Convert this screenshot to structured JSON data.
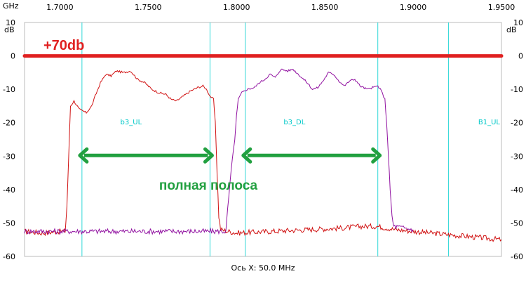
{
  "chart_data": {
    "type": "line",
    "x_unit": "GHz",
    "y_unit": "dB",
    "xlim": [
      1.68,
      1.95
    ],
    "ylim": [
      -60,
      10
    ],
    "x_ticks": [
      1.7,
      1.75,
      1.8,
      1.85,
      1.9,
      1.95
    ],
    "x_tick_labels": [
      "1.7000",
      "1.7500",
      "1.8000",
      "1.8500",
      "1.9000",
      "1.9500"
    ],
    "y_ticks": [
      10,
      0,
      -10,
      -20,
      -30,
      -40,
      -50,
      -60
    ],
    "y_tick_labels": [
      "10",
      "0",
      "-10",
      "-20",
      "-30",
      "-40",
      "-50",
      "-60"
    ],
    "xlabel": "Ось X: 50.0 MHz",
    "grid": "vertical markers only",
    "markers": [
      {
        "x": 1.7125,
        "label": "b3_UL"
      },
      {
        "x": 1.785,
        "label": ""
      },
      {
        "x": 1.805,
        "label": "b3_DL"
      },
      {
        "x": 1.88,
        "label": ""
      },
      {
        "x": 1.92,
        "label": "B1_UL"
      }
    ],
    "reference_line": {
      "y": 0,
      "label": "+70db",
      "color": "#e02020"
    },
    "bandwidth_arrows": [
      {
        "x1": 1.7125,
        "x2": 1.785,
        "y": -30
      },
      {
        "x1": 1.805,
        "x2": 1.88,
        "y": -30
      }
    ],
    "bandwidth_label": "полная полоса",
    "series": [
      {
        "color": "#d01010",
        "points": [
          [
            1.68,
            -52.5
          ],
          [
            1.69,
            -53
          ],
          [
            1.7,
            -52.5
          ],
          [
            1.703,
            -52.5
          ],
          [
            1.704,
            -45
          ],
          [
            1.705,
            -30
          ],
          [
            1.706,
            -15
          ],
          [
            1.708,
            -13.5
          ],
          [
            1.711,
            -16
          ],
          [
            1.715,
            -17
          ],
          [
            1.718,
            -15
          ],
          [
            1.72,
            -12
          ],
          [
            1.723,
            -8
          ],
          [
            1.726,
            -5.5
          ],
          [
            1.729,
            -6
          ],
          [
            1.732,
            -4.5
          ],
          [
            1.736,
            -5
          ],
          [
            1.74,
            -4.5
          ],
          [
            1.744,
            -7
          ],
          [
            1.748,
            -8
          ],
          [
            1.752,
            -10
          ],
          [
            1.756,
            -11
          ],
          [
            1.76,
            -11.5
          ],
          [
            1.763,
            -13
          ],
          [
            1.766,
            -13.5
          ],
          [
            1.77,
            -12
          ],
          [
            1.774,
            -10.5
          ],
          [
            1.778,
            -9.5
          ],
          [
            1.781,
            -9
          ],
          [
            1.783,
            -10
          ],
          [
            1.785,
            -12
          ],
          [
            1.787,
            -13
          ],
          [
            1.788,
            -20
          ],
          [
            1.789,
            -35
          ],
          [
            1.79,
            -48
          ],
          [
            1.791,
            -52
          ],
          [
            1.8,
            -53
          ],
          [
            1.82,
            -52.5
          ],
          [
            1.84,
            -52
          ],
          [
            1.86,
            -51.5
          ],
          [
            1.87,
            -51
          ],
          [
            1.88,
            -51
          ],
          [
            1.89,
            -52
          ],
          [
            1.9,
            -52.5
          ],
          [
            1.91,
            -53
          ],
          [
            1.92,
            -53.5
          ],
          [
            1.93,
            -54
          ],
          [
            1.94,
            -54.5
          ],
          [
            1.95,
            -55
          ]
        ]
      },
      {
        "color": "#9010a0",
        "points": [
          [
            1.68,
            -52.5
          ],
          [
            1.7,
            -52.5
          ],
          [
            1.72,
            -52.5
          ],
          [
            1.74,
            -52.5
          ],
          [
            1.76,
            -52.5
          ],
          [
            1.78,
            -52.5
          ],
          [
            1.79,
            -52.5
          ],
          [
            1.794,
            -52.5
          ],
          [
            1.795,
            -46
          ],
          [
            1.797,
            -34
          ],
          [
            1.799,
            -25
          ],
          [
            1.8,
            -18
          ],
          [
            1.801,
            -13
          ],
          [
            1.803,
            -11
          ],
          [
            1.806,
            -10
          ],
          [
            1.81,
            -9.5
          ],
          [
            1.813,
            -8
          ],
          [
            1.816,
            -7
          ],
          [
            1.819,
            -5.5
          ],
          [
            1.822,
            -6.5
          ],
          [
            1.825,
            -4
          ],
          [
            1.829,
            -4.5
          ],
          [
            1.832,
            -4
          ],
          [
            1.836,
            -6
          ],
          [
            1.84,
            -8
          ],
          [
            1.843,
            -10
          ],
          [
            1.846,
            -9.5
          ],
          [
            1.849,
            -7.5
          ],
          [
            1.852,
            -5
          ],
          [
            1.855,
            -5.5
          ],
          [
            1.858,
            -7.5
          ],
          [
            1.861,
            -9
          ],
          [
            1.864,
            -7.5
          ],
          [
            1.867,
            -7
          ],
          [
            1.87,
            -9
          ],
          [
            1.874,
            -10
          ],
          [
            1.877,
            -9.5
          ],
          [
            1.88,
            -9
          ],
          [
            1.882,
            -10.5
          ],
          [
            1.884,
            -13
          ],
          [
            1.885,
            -20
          ],
          [
            1.886,
            -30
          ],
          [
            1.887,
            -40
          ],
          [
            1.888,
            -48
          ],
          [
            1.889,
            -51
          ],
          [
            1.9,
            -52
          ]
        ]
      }
    ]
  }
}
